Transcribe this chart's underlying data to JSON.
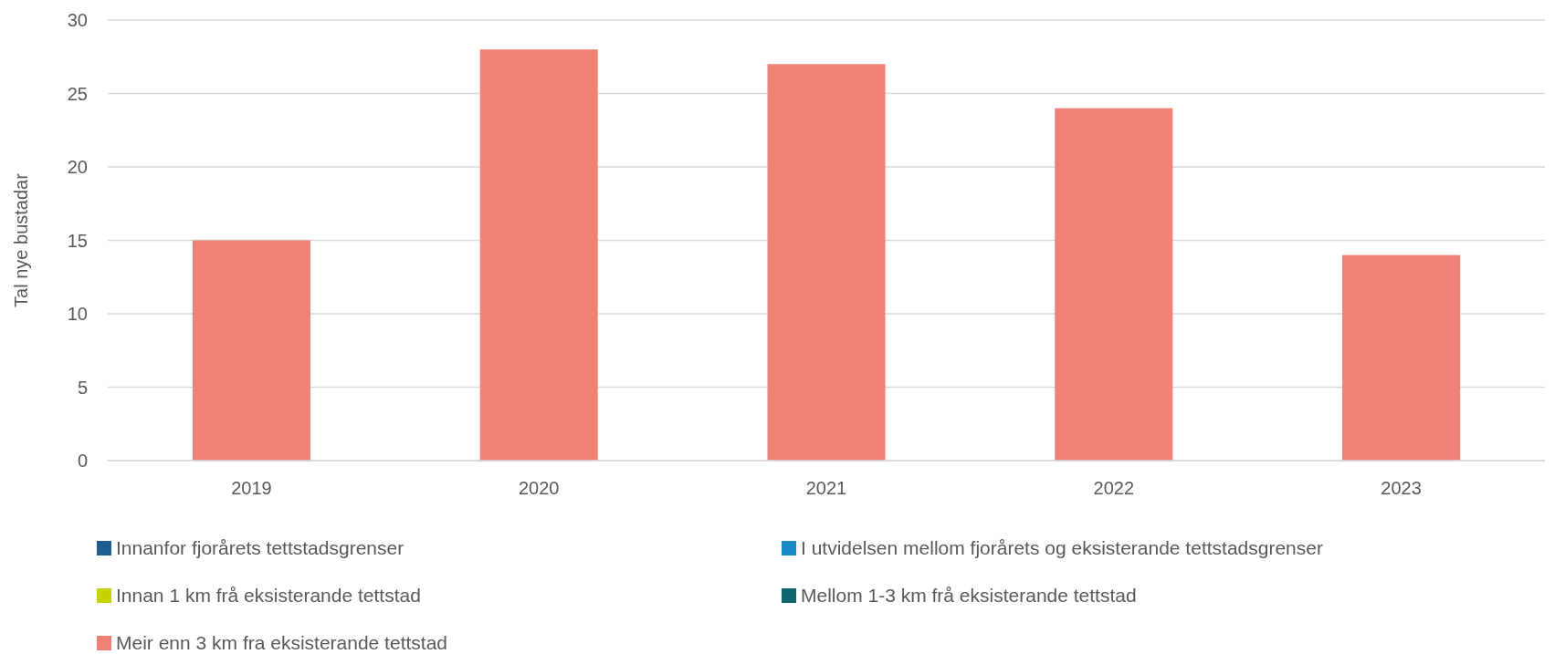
{
  "chart_data": {
    "type": "bar",
    "stacked": true,
    "ylabel": "Tal nye bustadar",
    "categories": [
      "2019",
      "2020",
      "2021",
      "2022",
      "2023"
    ],
    "series": [
      {
        "name": "Innanfor fjorårets tettstadsgrenser",
        "color": "#1f5d8e",
        "values": [
          0,
          0,
          0,
          0,
          0
        ]
      },
      {
        "name": "I utvidelsen mellom fjorårets og eksisterande tettstadsgrenser",
        "color": "#1a8ac6",
        "values": [
          0,
          0,
          0,
          0,
          0
        ]
      },
      {
        "name": "Innan 1 km frå eksisterande tettstad",
        "color": "#c5d300",
        "values": [
          0,
          0,
          0,
          0,
          0
        ]
      },
      {
        "name": "Mellom 1-3 km frå eksisterande tettstad",
        "color": "#10646b",
        "values": [
          0,
          0,
          0,
          0,
          0
        ]
      },
      {
        "name": "Meir enn 3 km fra eksisterande tettstad",
        "color": "#ef8176",
        "values": [
          15,
          28,
          27,
          24,
          14
        ]
      }
    ],
    "ylim": [
      0,
      30
    ],
    "yticks": [
      0,
      5,
      10,
      15,
      20,
      25,
      30
    ],
    "grid": "y",
    "legend": "bottom"
  }
}
